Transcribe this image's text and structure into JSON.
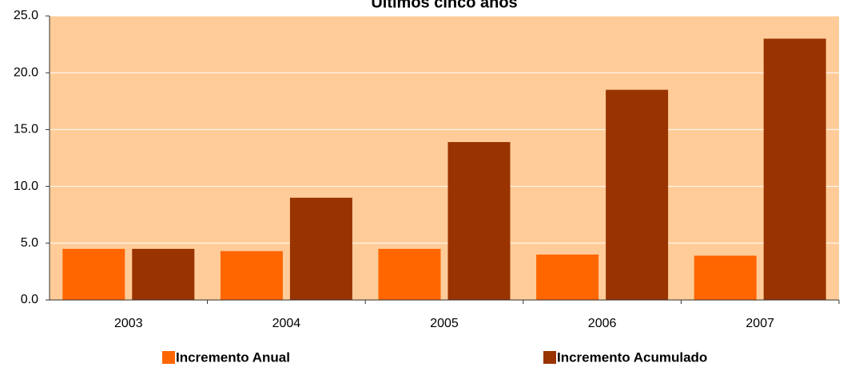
{
  "chart_data": {
    "type": "bar",
    "title": "Últimos cinco años",
    "categories": [
      "2003",
      "2004",
      "2005",
      "2006",
      "2007"
    ],
    "series": [
      {
        "name": "Incremento Anual",
        "color": "#ff6600",
        "values": [
          4.5,
          4.3,
          4.5,
          4.0,
          3.9
        ]
      },
      {
        "name": "Incremento Acumulado",
        "color": "#993300",
        "values": [
          4.5,
          9.0,
          13.9,
          18.5,
          23.0
        ]
      }
    ],
    "ylim": [
      0,
      25
    ],
    "yticks": [
      {
        "value": 0,
        "label": "0.0"
      },
      {
        "value": 5,
        "label": "5.0"
      },
      {
        "value": 10,
        "label": "10.0"
      },
      {
        "value": 15,
        "label": "15.0"
      },
      {
        "value": 20,
        "label": "20.0"
      },
      {
        "value": 25,
        "label": "25.0"
      }
    ],
    "grid": true,
    "legend": "bottom",
    "plot_background": "#ffcc99"
  }
}
